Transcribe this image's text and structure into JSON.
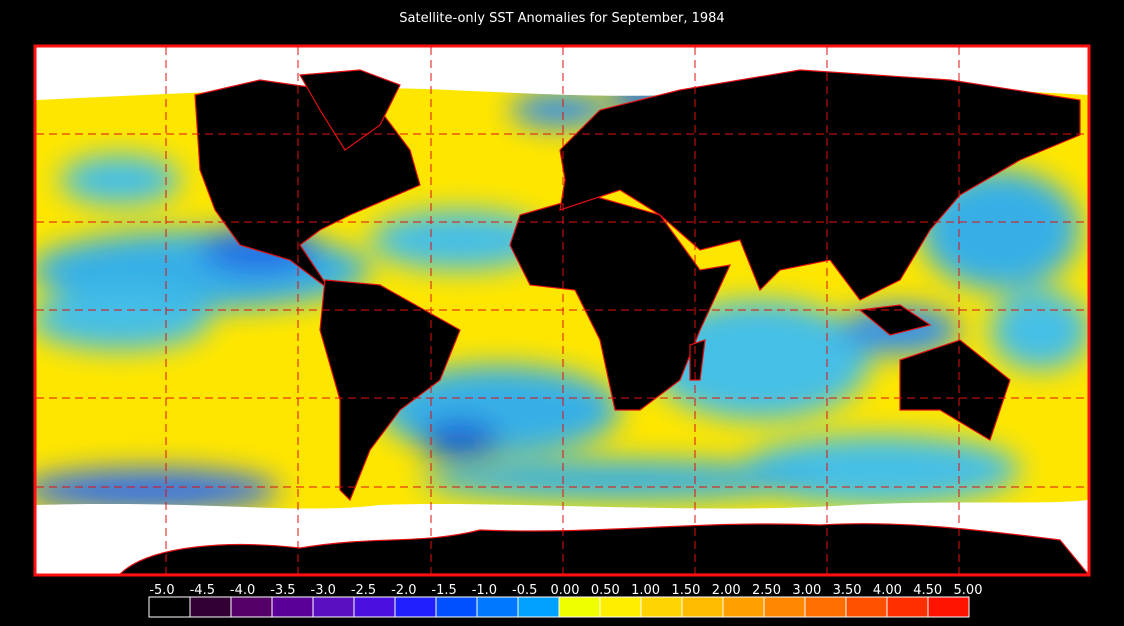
{
  "title": "Satellite-only SST Anomalies for September, 1984",
  "colorbar": {
    "labels": [
      "-5.0",
      "-4.5",
      "-4.0",
      "-3.5",
      "-3.0",
      "-2.5",
      "-2.0",
      "-1.5",
      "-1.0",
      "-0.5",
      "0.00",
      "0.50",
      "1.00",
      "1.50",
      "2.00",
      "2.50",
      "3.00",
      "3.50",
      "4.00",
      "4.50",
      "5.00"
    ],
    "colors": [
      "#000000",
      "#330033",
      "#550066",
      "#5a0099",
      "#5a10c0",
      "#4a10e0",
      "#2020ff",
      "#0050ff",
      "#0078ff",
      "#00a0ff",
      "#00ccff",
      "#eeff00",
      "#ffee00",
      "#ffd400",
      "#ffbb00",
      "#ffa000",
      "#ff8800",
      "#ff6e00",
      "#ff5000",
      "#ff3000",
      "#ff1200"
    ]
  }
}
